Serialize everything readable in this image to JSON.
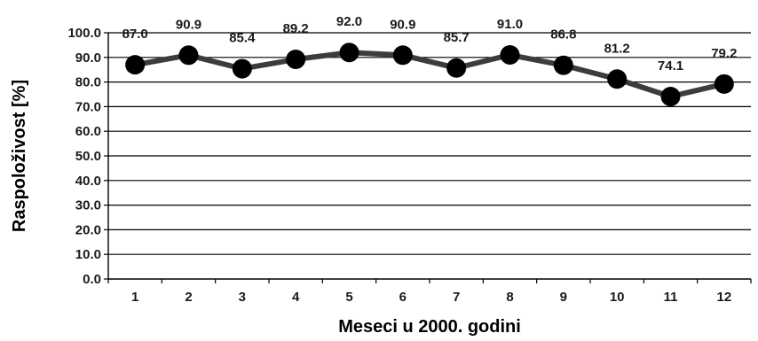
{
  "chart_data": {
    "type": "line",
    "x": [
      "1",
      "2",
      "3",
      "4",
      "5",
      "6",
      "7",
      "8",
      "9",
      "10",
      "11",
      "12"
    ],
    "values": [
      87.0,
      90.9,
      85.4,
      89.2,
      92.0,
      90.9,
      85.7,
      91.0,
      86.8,
      81.2,
      74.1,
      79.2
    ],
    "data_labels": [
      "87.0",
      "90.9",
      "85.4",
      "89.2",
      "92.0",
      "90.9",
      "85.7",
      "91.0",
      "86.8",
      "81.2",
      "74.1",
      "79.2"
    ],
    "y_ticks": [
      "0.0",
      "10.0",
      "20.0",
      "30.0",
      "40.0",
      "50.0",
      "60.0",
      "70.0",
      "80.0",
      "90.0",
      "100.0"
    ],
    "xlabel": "Meseci u 2000. godini",
    "ylabel": "Raspoloživost [%]",
    "ylim": [
      0,
      100
    ],
    "grid": true,
    "markers": "filled-circle",
    "colors": {
      "line": "#3c3c3c",
      "marker": "#000000",
      "grid": "#000000",
      "text": "#1a1a1a"
    }
  }
}
